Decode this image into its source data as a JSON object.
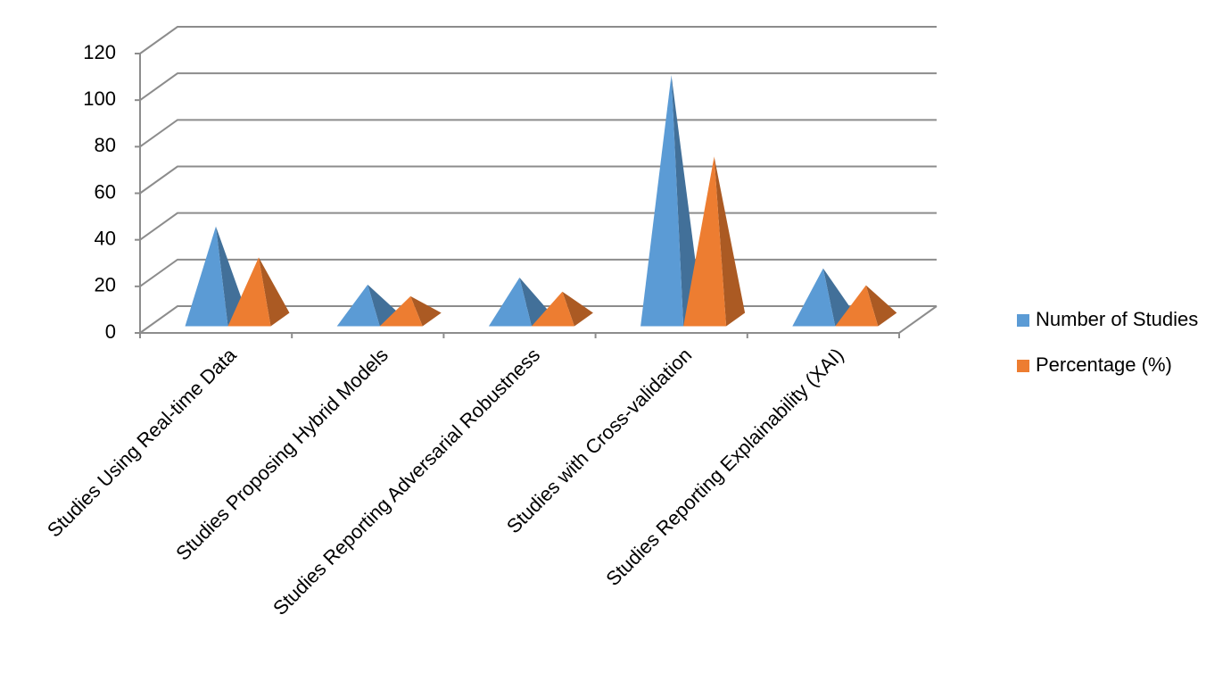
{
  "chart_data": {
    "type": "pyramid3d",
    "categories": [
      "Studies Using Real-time Data",
      "Studies Proposing Hybrid Models",
      "Studies Reporting Adversarial Robustness",
      "Studies with Cross-validation",
      "Studies Reporting Explainability (XAI)"
    ],
    "series": [
      {
        "name": "Number of Studies",
        "color": "#5b9bd5",
        "values": [
          40,
          15,
          18,
          105,
          22
        ]
      },
      {
        "name": "Percentage (%)",
        "color": "#ed7d31",
        "values": [
          26.7,
          10,
          12,
          70,
          14.7
        ]
      }
    ],
    "ylim": [
      0,
      120
    ],
    "yticks": [
      0,
      20,
      40,
      60,
      80,
      100,
      120
    ],
    "grid": true,
    "legend": "right"
  }
}
